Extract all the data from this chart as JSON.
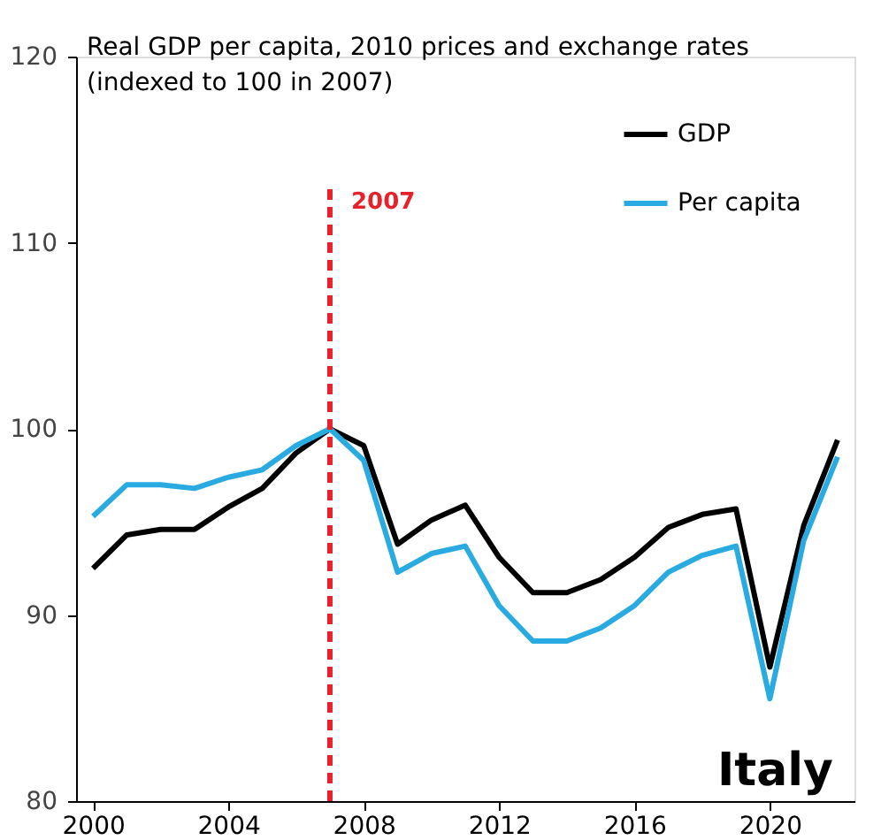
{
  "chart_data": {
    "type": "line",
    "title": "Real GDP per capita, 2010 prices and exchange rates",
    "subtitle": "(indexed to 100 in 2007)",
    "x": [
      2000,
      2001,
      2002,
      2003,
      2004,
      2005,
      2006,
      2007,
      2008,
      2009,
      2010,
      2011,
      2012,
      2013,
      2014,
      2015,
      2016,
      2017,
      2018,
      2019,
      2020,
      2021,
      2022
    ],
    "series": [
      {
        "name": "GDP",
        "color": "#000000",
        "values": [
          92.5,
          94.3,
          94.6,
          94.6,
          95.8,
          96.8,
          98.7,
          100,
          99.1,
          93.8,
          95.1,
          95.9,
          93.1,
          91.2,
          91.2,
          91.9,
          93.1,
          94.7,
          95.4,
          95.7,
          87.2,
          94.8,
          99.4
        ]
      },
      {
        "name": "Per capita",
        "color": "#29abe2",
        "values": [
          95.3,
          97.0,
          97.0,
          96.8,
          97.4,
          97.8,
          99.1,
          100,
          98.3,
          92.3,
          93.3,
          93.7,
          90.5,
          88.6,
          88.6,
          89.3,
          90.5,
          92.3,
          93.2,
          93.7,
          85.5,
          94.0,
          98.5
        ]
      }
    ],
    "xlim": [
      1999.5,
      2022.5
    ],
    "xticks": [
      2000,
      2004,
      2008,
      2012,
      2016,
      2020
    ],
    "ylim": [
      80,
      120
    ],
    "yticks": [
      80,
      90,
      100,
      110,
      120
    ],
    "ref_lines": [
      {
        "axis": "x",
        "value": 2007,
        "label": "2007",
        "color": "#e8202a",
        "line_style": "dashed"
      }
    ],
    "annotations": [
      "Italy"
    ],
    "grid": false,
    "legend": "top right",
    "marker": "none",
    "line_style": "solid"
  }
}
